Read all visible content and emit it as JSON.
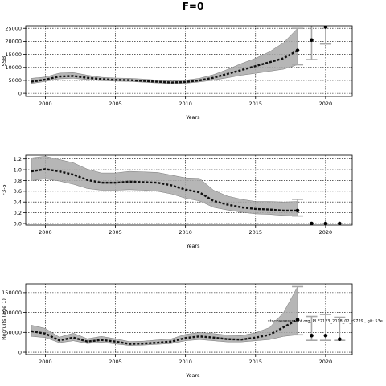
{
  "title": "F=0",
  "annotation": "stockassessment.org, PLE2123_2018_02_r9729 , git: 53e",
  "chart_data": [
    {
      "type": "line",
      "name": "ssb",
      "ylabel": "SSB",
      "xlabel": "Years",
      "xlim": [
        1998.6,
        2021.9
      ],
      "ylim": [
        -1200,
        26000
      ],
      "xticks": [
        2000,
        2005,
        2010,
        2015,
        2020
      ],
      "yticks": [
        0,
        5000,
        10000,
        15000,
        20000,
        25000
      ],
      "grid": true,
      "hist": {
        "x": [
          1999,
          2000,
          2001,
          2002,
          2003,
          2004,
          2005,
          2006,
          2007,
          2008,
          2009,
          2010,
          2011,
          2012,
          2013,
          2014,
          2015,
          2016,
          2017,
          2018
        ],
        "y": [
          4500,
          5300,
          6500,
          6700,
          6000,
          5500,
          5200,
          5100,
          4800,
          4500,
          4200,
          4400,
          5000,
          6000,
          7500,
          9000,
          10500,
          12000,
          13500,
          16500
        ],
        "lo": [
          3800,
          4600,
          5600,
          5800,
          5300,
          4900,
          4700,
          4600,
          4300,
          4000,
          3700,
          3900,
          4400,
          5100,
          6000,
          7000,
          7700,
          8500,
          9300,
          11000
        ],
        "hi": [
          5800,
          6300,
          7800,
          8000,
          7000,
          6200,
          5900,
          5800,
          5500,
          5100,
          4800,
          5100,
          5800,
          7200,
          9200,
          11500,
          13500,
          16000,
          19500,
          25000
        ]
      },
      "forecast": {
        "x": [
          2018,
          2019,
          2020
        ],
        "y": [
          16500,
          20500,
          25500
        ],
        "lo": [
          11000,
          13000,
          19000
        ],
        "hi": [
          25000,
          27000,
          27000
        ]
      }
    },
    {
      "type": "line",
      "name": "fbar",
      "ylabel": "F3-5",
      "xlabel": "Years",
      "xlim": [
        1998.6,
        2021.9
      ],
      "ylim": [
        -0.03,
        1.27
      ],
      "xticks": [
        2000,
        2005,
        2010,
        2015,
        2020
      ],
      "yticks": [
        0.0,
        0.2,
        0.4,
        0.6,
        0.8,
        1.0,
        1.2
      ],
      "grid": true,
      "hist": {
        "x": [
          1999,
          2000,
          2001,
          2002,
          2003,
          2004,
          2005,
          2006,
          2007,
          2008,
          2009,
          2010,
          2011,
          2012,
          2013,
          2014,
          2015,
          2016,
          2017,
          2018
        ],
        "y": [
          0.97,
          1.01,
          0.97,
          0.91,
          0.81,
          0.76,
          0.76,
          0.78,
          0.77,
          0.76,
          0.71,
          0.63,
          0.58,
          0.42,
          0.35,
          0.3,
          0.27,
          0.26,
          0.24,
          0.24
        ],
        "lo": [
          0.8,
          0.83,
          0.79,
          0.73,
          0.65,
          0.62,
          0.62,
          0.63,
          0.62,
          0.6,
          0.55,
          0.47,
          0.42,
          0.3,
          0.25,
          0.21,
          0.18,
          0.17,
          0.15,
          0.14
        ],
        "hi": [
          1.22,
          1.25,
          1.19,
          1.13,
          1.01,
          0.94,
          0.94,
          0.97,
          0.96,
          0.95,
          0.9,
          0.85,
          0.84,
          0.62,
          0.51,
          0.45,
          0.41,
          0.41,
          0.4,
          0.41
        ]
      },
      "forecast": {
        "x": [
          2018,
          2019,
          2020,
          2021
        ],
        "y": [
          0.24,
          0.0,
          0.0,
          0.0
        ],
        "lo": [
          0.14,
          0.0,
          0.0,
          0.0
        ],
        "hi": [
          0.45,
          0.0,
          0.0,
          0.0
        ]
      }
    },
    {
      "type": "line",
      "name": "rec",
      "ylabel": "Recruits (age 1)",
      "xlabel": "Years",
      "xlim": [
        1998.6,
        2021.9
      ],
      "ylim": [
        -6000,
        172000
      ],
      "xticks": [
        2000,
        2005,
        2010,
        2015,
        2020
      ],
      "yticks": [
        0,
        50000,
        100000,
        150000
      ],
      "grid": true,
      "hist": {
        "x": [
          1999,
          2000,
          2001,
          2002,
          2003,
          2004,
          2005,
          2006,
          2007,
          2008,
          2009,
          2010,
          2011,
          2012,
          2013,
          2014,
          2015,
          2016,
          2017,
          2018
        ],
        "y": [
          53000,
          47000,
          30000,
          37000,
          27000,
          31000,
          27000,
          21000,
          22000,
          24000,
          27000,
          36000,
          40000,
          37000,
          33000,
          32000,
          37000,
          44000,
          63000,
          82000
        ],
        "lo": [
          40000,
          37000,
          24000,
          29000,
          22000,
          25000,
          21000,
          17000,
          18000,
          20000,
          22000,
          29000,
          32000,
          29000,
          26000,
          26000,
          29000,
          32000,
          40000,
          44000
        ],
        "hi": [
          68000,
          60000,
          38000,
          48000,
          34000,
          40000,
          34000,
          27000,
          28000,
          31000,
          34000,
          45000,
          50000,
          47000,
          43000,
          42000,
          49000,
          62000,
          100000,
          165000
        ]
      },
      "forecast": {
        "x": [
          2018,
          2019,
          2020,
          2021
        ],
        "y": [
          82000,
          42000,
          42000,
          33000
        ],
        "lo": [
          44000,
          30000,
          30000,
          30000
        ],
        "hi": [
          165000,
          90000,
          95000,
          88000
        ]
      }
    }
  ]
}
